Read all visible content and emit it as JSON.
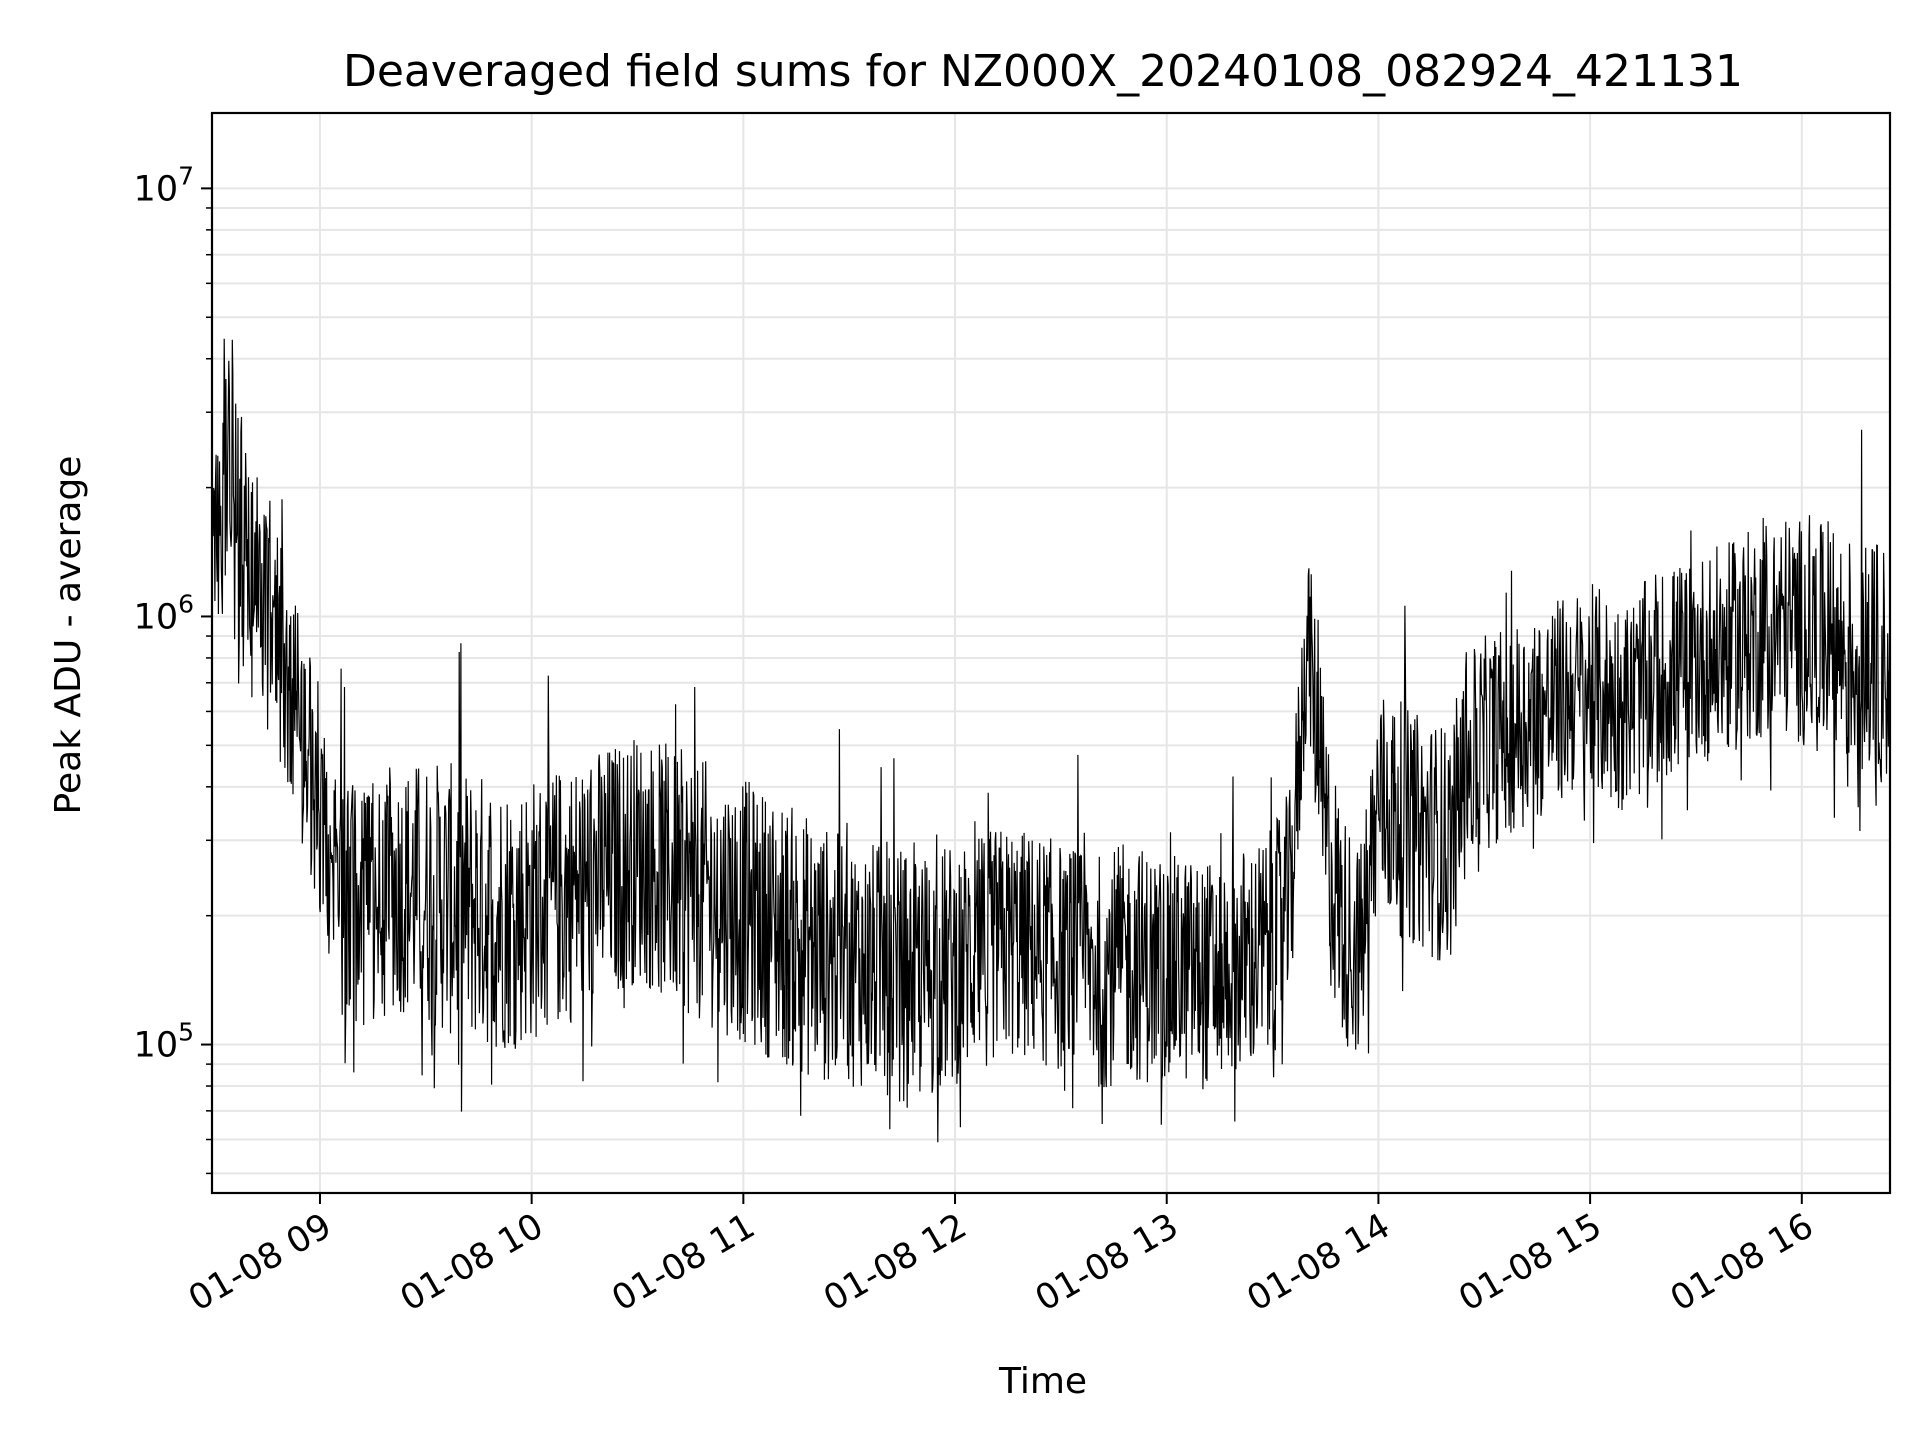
{
  "chart_data": {
    "type": "line",
    "title": "Deaveraged field sums for NZ000X_20240108_082924_421131",
    "xlabel": "Time",
    "ylabel": "Peak ADU - average",
    "x_range": [
      "2024-01-08 08:29:24",
      "2024-01-08 16:25:00"
    ],
    "ylim": [
      45000,
      15000000
    ],
    "yscale": "log",
    "grid": true,
    "legend": "none",
    "line_color": "#000000",
    "grid_color": "#e6e6e6",
    "x_ticks": [
      {
        "value": "2024-01-08 09:00",
        "label": "01-08 09"
      },
      {
        "value": "2024-01-08 10:00",
        "label": "01-08 10"
      },
      {
        "value": "2024-01-08 11:00",
        "label": "01-08 11"
      },
      {
        "value": "2024-01-08 12:00",
        "label": "01-08 12"
      },
      {
        "value": "2024-01-08 13:00",
        "label": "01-08 13"
      },
      {
        "value": "2024-01-08 14:00",
        "label": "01-08 14"
      },
      {
        "value": "2024-01-08 15:00",
        "label": "01-08 15"
      },
      {
        "value": "2024-01-08 16:00",
        "label": "01-08 16"
      }
    ],
    "y_ticks": [
      {
        "value": 100000,
        "base": "10",
        "exp": "5"
      },
      {
        "value": 1000000,
        "base": "10",
        "exp": "6"
      },
      {
        "value": 10000000,
        "base": "10",
        "exp": "7"
      }
    ],
    "series": [
      {
        "x": [
          "2024-01-08 08:30",
          "2024-01-08 08:35",
          "2024-01-08 08:40",
          "2024-01-08 08:45",
          "2024-01-08 08:50",
          "2024-01-08 08:55",
          "2024-01-08 09:00",
          "2024-01-08 09:05",
          "2024-01-08 09:10",
          "2024-01-08 09:15",
          "2024-01-08 09:20",
          "2024-01-08 09:25",
          "2024-01-08 09:30",
          "2024-01-08 09:35",
          "2024-01-08 09:40",
          "2024-01-08 09:45",
          "2024-01-08 09:50",
          "2024-01-08 09:55",
          "2024-01-08 10:00",
          "2024-01-08 10:05",
          "2024-01-08 10:10",
          "2024-01-08 10:15",
          "2024-01-08 10:20",
          "2024-01-08 10:25",
          "2024-01-08 10:30",
          "2024-01-08 10:35",
          "2024-01-08 10:40",
          "2024-01-08 10:45",
          "2024-01-08 10:50",
          "2024-01-08 10:55",
          "2024-01-08 11:00",
          "2024-01-08 11:05",
          "2024-01-08 11:10",
          "2024-01-08 11:15",
          "2024-01-08 11:20",
          "2024-01-08 11:25",
          "2024-01-08 11:30",
          "2024-01-08 11:35",
          "2024-01-08 11:40",
          "2024-01-08 11:45",
          "2024-01-08 11:50",
          "2024-01-08 11:55",
          "2024-01-08 12:00",
          "2024-01-08 12:05",
          "2024-01-08 12:10",
          "2024-01-08 12:15",
          "2024-01-08 12:20",
          "2024-01-08 12:25",
          "2024-01-08 12:30",
          "2024-01-08 12:35",
          "2024-01-08 12:40",
          "2024-01-08 12:45",
          "2024-01-08 12:50",
          "2024-01-08 12:55",
          "2024-01-08 13:00",
          "2024-01-08 13:05",
          "2024-01-08 13:10",
          "2024-01-08 13:15",
          "2024-01-08 13:20",
          "2024-01-08 13:25",
          "2024-01-08 13:30",
          "2024-01-08 13:35",
          "2024-01-08 13:40",
          "2024-01-08 13:45",
          "2024-01-08 13:50",
          "2024-01-08 13:55",
          "2024-01-08 14:00",
          "2024-01-08 14:05",
          "2024-01-08 14:10",
          "2024-01-08 14:15",
          "2024-01-08 14:20",
          "2024-01-08 14:25",
          "2024-01-08 14:30",
          "2024-01-08 14:35",
          "2024-01-08 14:40",
          "2024-01-08 14:45",
          "2024-01-08 14:50",
          "2024-01-08 14:55",
          "2024-01-08 15:00",
          "2024-01-08 15:05",
          "2024-01-08 15:10",
          "2024-01-08 15:15",
          "2024-01-08 15:20",
          "2024-01-08 15:25",
          "2024-01-08 15:30",
          "2024-01-08 15:35",
          "2024-01-08 15:40",
          "2024-01-08 15:45",
          "2024-01-08 15:50",
          "2024-01-08 15:55",
          "2024-01-08 16:00",
          "2024-01-08 16:05",
          "2024-01-08 16:10",
          "2024-01-08 16:15",
          "2024-01-08 16:20",
          "2024-01-08 16:25"
        ],
        "y_low": [
          1000000,
          900000,
          800000,
          600000,
          400000,
          300000,
          200000,
          120000,
          100000,
          110000,
          120000,
          115000,
          110000,
          105000,
          100000,
          100000,
          95000,
          98000,
          100000,
          105000,
          110000,
          115000,
          125000,
          130000,
          140000,
          130000,
          120000,
          115000,
          110000,
          105000,
          100000,
          95000,
          90000,
          85000,
          82000,
          80000,
          80000,
          78000,
          75000,
          73000,
          72000,
          75000,
          80000,
          85000,
          90000,
          92000,
          90000,
          88000,
          85000,
          80000,
          78000,
          80000,
          82000,
          80000,
          80000,
          80000,
          78000,
          80000,
          82000,
          85000,
          90000,
          120000,
          600000,
          150000,
          100000,
          90000,
          200000,
          180000,
          170000,
          160000,
          150000,
          250000,
          280000,
          300000,
          320000,
          330000,
          350000,
          380000,
          380000,
          360000,
          350000,
          380000,
          400000,
          420000,
          450000,
          460000,
          480000,
          500000,
          520000,
          520000,
          500000,
          480000,
          450000,
          420000,
          400000,
          400000
        ],
        "y_high": [
          2200000,
          5000000,
          2500000,
          1800000,
          1500000,
          1000000,
          600000,
          450000,
          400000,
          420000,
          450000,
          460000,
          470000,
          460000,
          450000,
          440000,
          430000,
          420000,
          430000,
          440000,
          460000,
          480000,
          500000,
          520000,
          540000,
          520000,
          500000,
          480000,
          460000,
          440000,
          420000,
          400000,
          380000,
          360000,
          340000,
          320000,
          310000,
          300000,
          300000,
          290000,
          280000,
          290000,
          300000,
          310000,
          320000,
          330000,
          320000,
          310000,
          300000,
          290000,
          280000,
          290000,
          300000,
          290000,
          280000,
          280000,
          270000,
          280000,
          290000,
          300000,
          320000,
          400000,
          1500000,
          600000,
          350000,
          300000,
          700000,
          650000,
          600000,
          580000,
          560000,
          800000,
          900000,
          950000,
          1000000,
          1050000,
          1100000,
          1150000,
          1200000,
          1150000,
          1100000,
          1200000,
          1300000,
          1350000,
          1400000,
          1450000,
          1500000,
          1600000,
          1700000,
          1750000,
          1700000,
          1650000,
          1600000,
          1550000,
          1500000,
          1500000
        ]
      }
    ]
  }
}
